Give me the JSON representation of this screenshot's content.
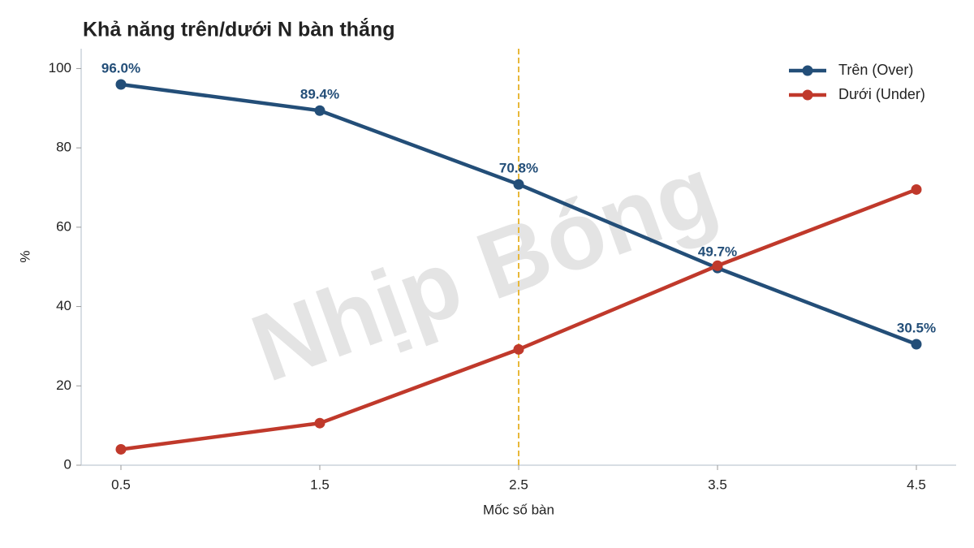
{
  "chart_data": {
    "type": "line",
    "title": "Khả năng trên/dưới N bàn thắng",
    "xlabel": "Mốc số bàn",
    "ylabel": "%",
    "watermark": "Nhịp Bóng",
    "x": [
      0.5,
      1.5,
      2.5,
      3.5,
      4.5
    ],
    "series": [
      {
        "name": "Trên (Over)",
        "color": "#234e78",
        "values": [
          96.0,
          89.4,
          70.8,
          49.7,
          30.5
        ],
        "value_labels": [
          "96.0%",
          "89.4%",
          "70.8%",
          "49.7%",
          "30.5%"
        ]
      },
      {
        "name": "Dưới (Under)",
        "color": "#c0392b",
        "values": [
          4.0,
          10.6,
          29.2,
          50.3,
          69.5
        ]
      }
    ],
    "vline_x": 2.5,
    "vline_color": "#e8b83a",
    "xlim": [
      0.3,
      4.7
    ],
    "xticks": [
      0.5,
      1.5,
      2.5,
      3.5,
      4.5
    ],
    "ylim": [
      0,
      105
    ],
    "yticks": [
      0,
      20,
      40,
      60,
      80,
      100
    ],
    "grid": false,
    "legend": "upper right"
  }
}
